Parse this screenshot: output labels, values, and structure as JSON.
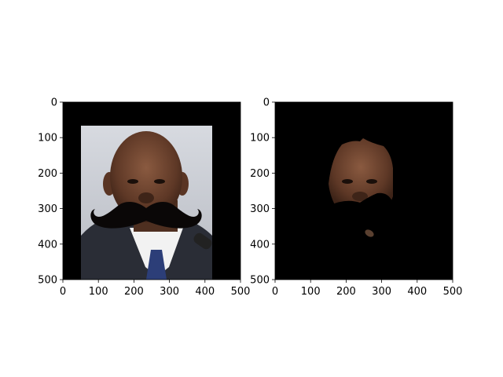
{
  "chart_data": [
    {
      "type": "image",
      "name": "",
      "xlim": [
        0,
        500
      ],
      "ylim": [
        500,
        0
      ],
      "xticks": [
        0,
        100,
        200,
        300,
        400,
        500
      ],
      "yticks": [
        0,
        100,
        200,
        300,
        400,
        500
      ],
      "xtick_labels": [
        "0",
        "100",
        "200",
        "300",
        "400",
        "500"
      ],
      "ytick_labels": [
        "0",
        "100",
        "200",
        "300",
        "400",
        "500"
      ],
      "background_color": "#000000",
      "photo_region": {
        "x": [
          50,
          420
        ],
        "y": [
          68,
          500
        ]
      },
      "mustache_region": {
        "x": [
          78,
          372
        ],
        "y": [
          275,
          362
        ]
      },
      "grid": false
    },
    {
      "type": "image",
      "name": "",
      "xlim": [
        0,
        500
      ],
      "ylim": [
        500,
        0
      ],
      "xticks": [
        0,
        100,
        200,
        300,
        400,
        500
      ],
      "yticks": [
        0,
        100,
        200,
        300,
        400,
        500
      ],
      "xtick_labels": [
        "0",
        "100",
        "200",
        "300",
        "400",
        "500"
      ],
      "ytick_labels": [
        "0",
        "100",
        "200",
        "300",
        "400",
        "500"
      ],
      "background_color": "#000000",
      "face_region": {
        "x": [
          150,
          335
        ],
        "y": [
          100,
          300
        ]
      },
      "grid": false
    }
  ],
  "colors": {
    "background": "#ffffff",
    "image_background": "#000000",
    "skin": "#6a3f2b",
    "photo_backdrop": "#c9ccd3",
    "suit": "#2a2d36",
    "shirt": "#f2f2f2",
    "tie": "#2c3e78",
    "mustache": "#0a0707"
  }
}
